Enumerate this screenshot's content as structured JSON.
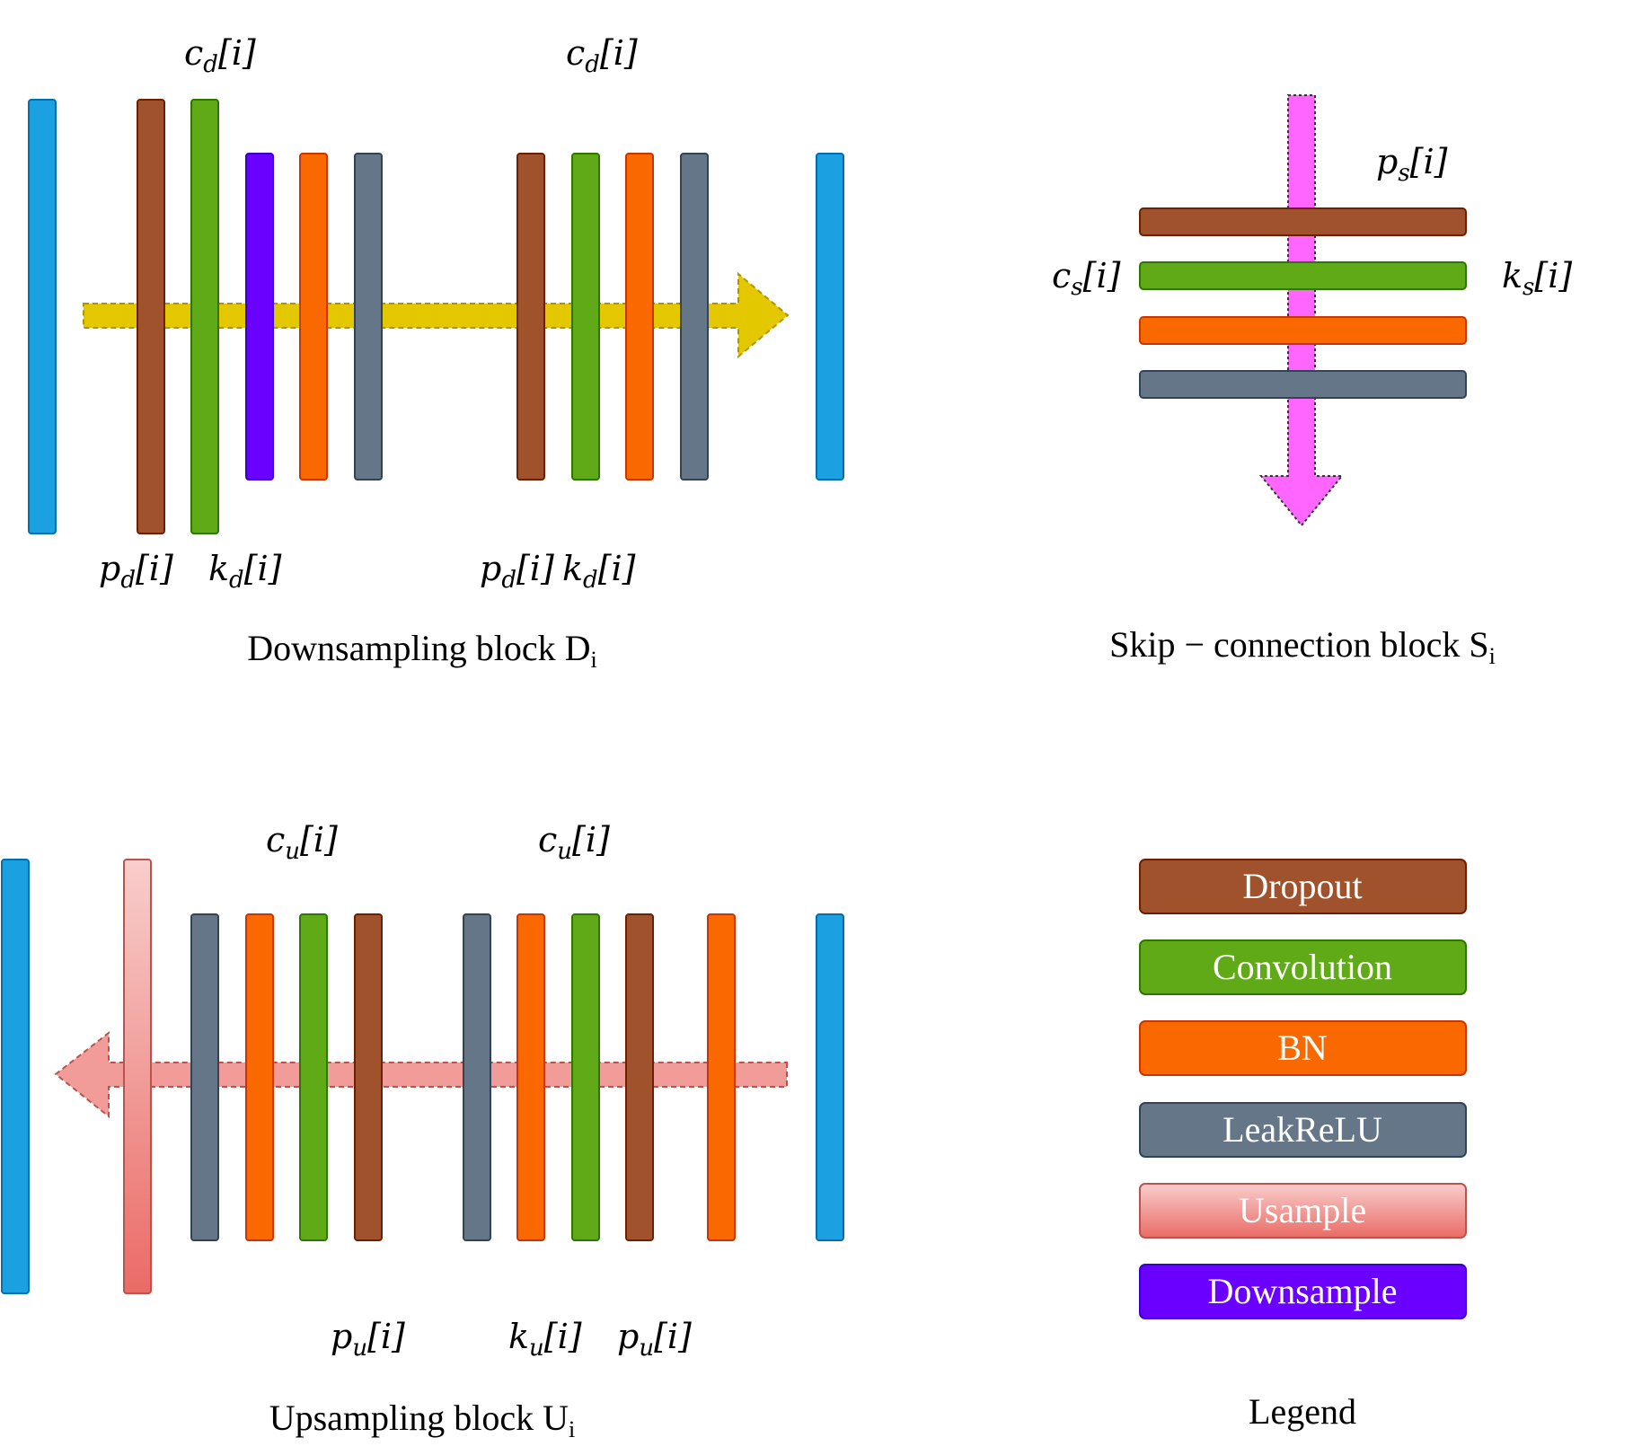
{
  "colors": {
    "feature_map": "#1ba1e2",
    "dropout": "#a0522d",
    "convolution": "#60a917",
    "bn": "#fa6800",
    "leakrelu": "#647687",
    "downsample": "#6a00ff",
    "usample_top": "#f8cecc",
    "usample_bottom": "#ea6b66",
    "arrow_down": "#e3c800",
    "arrow_skip": "#ff66ff",
    "arrow_up": "#f19c99"
  },
  "downsampling": {
    "title": "Downsampling block",
    "title_sub": "i",
    "title_main_letter": "D",
    "label_cd_1": "c",
    "label_cd_1_sub": "d",
    "label_cd_1_idx": "[i]",
    "label_cd_2": "c",
    "label_cd_2_sub": "d",
    "label_cd_2_idx": "[i]",
    "label_pd_1": "p",
    "label_pd_1_sub": "d",
    "label_pd_1_idx": "[i]",
    "label_kd_1": "k",
    "label_kd_1_sub": "d",
    "label_kd_1_idx": "[i]",
    "label_pd_2": "p",
    "label_pd_2_sub": "d",
    "label_pd_2_idx": "[i]",
    "label_kd_2": "k",
    "label_kd_2_sub": "d",
    "label_kd_2_idx": "[i]"
  },
  "skip": {
    "title": "Skip − connection block",
    "title_main_letter": "S",
    "title_sub": "i",
    "label_ps": "p",
    "label_ps_sub": "s",
    "label_ps_idx": "[i]",
    "label_cs": "c",
    "label_cs_sub": "s",
    "label_cs_idx": "[i]",
    "label_ks": "k",
    "label_ks_sub": "s",
    "label_ks_idx": "[i]"
  },
  "upsampling": {
    "title": "Upsampling block",
    "title_main_letter": "U",
    "title_sub": "i",
    "label_cu_1": "c",
    "label_cu_1_sub": "u",
    "label_cu_1_idx": "[i]",
    "label_cu_2": "c",
    "label_cu_2_sub": "u",
    "label_cu_2_idx": "[i]",
    "label_pu_1": "p",
    "label_pu_1_sub": "u",
    "label_pu_1_idx": "[i]",
    "label_ku": "k",
    "label_ku_sub": "u",
    "label_ku_idx": "[i]",
    "label_pu_2": "p",
    "label_pu_2_sub": "u",
    "label_pu_2_idx": "[i]"
  },
  "legend": {
    "title": "Legend",
    "items": [
      {
        "label": "Dropout"
      },
      {
        "label": "Convolution"
      },
      {
        "label": "BN"
      },
      {
        "label": "LeakReLU"
      },
      {
        "label": "Usample"
      },
      {
        "label": "Downsample"
      }
    ]
  }
}
